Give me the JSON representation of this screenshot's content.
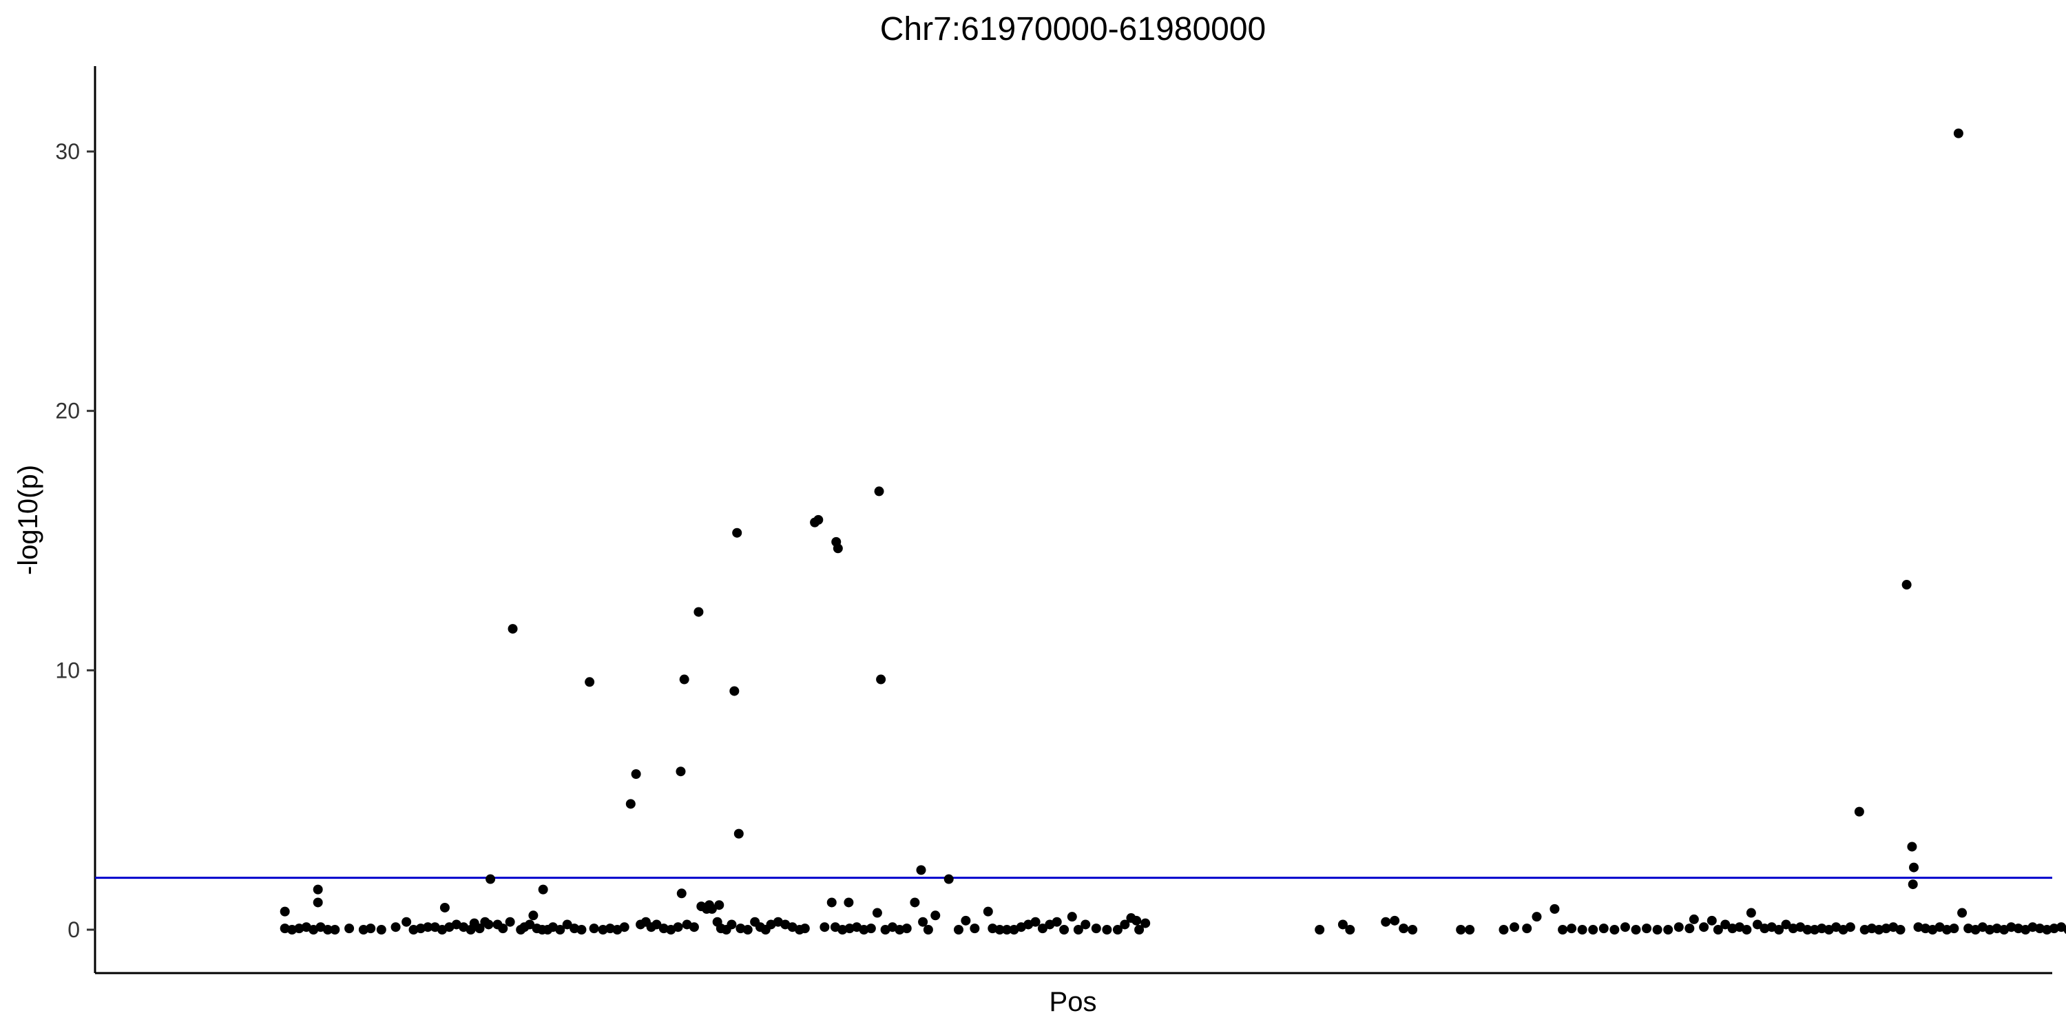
{
  "chart_data": {
    "type": "scatter",
    "title": "Chr7:61970000-61980000",
    "xlabel": "Pos",
    "ylabel": "-log10(p)",
    "ylim": [
      0,
      33.5
    ],
    "y_ticks": [
      0,
      10,
      20,
      30
    ],
    "y_tick_labels": [
      "0",
      "10",
      "20",
      "30"
    ],
    "x_ticks_shown": false,
    "grid": false,
    "threshold_line": {
      "y": 2,
      "color": "#0000CC"
    },
    "point_color": "#000000",
    "x_units": "chart fraction (no x tick labels printed)",
    "points": [
      [
        0.046,
        0.7
      ],
      [
        0.046,
        0.05
      ],
      [
        0.05,
        0.0
      ],
      [
        0.054,
        0.05
      ],
      [
        0.058,
        0.1
      ],
      [
        0.062,
        0.0
      ],
      [
        0.066,
        0.1
      ],
      [
        0.0645,
        1.05
      ],
      [
        0.0645,
        1.55
      ],
      [
        0.07,
        0.0
      ],
      [
        0.074,
        0.0
      ],
      [
        0.082,
        0.05
      ],
      [
        0.09,
        0.0
      ],
      [
        0.094,
        0.05
      ],
      [
        0.1,
        0.0
      ],
      [
        0.108,
        0.1
      ],
      [
        0.114,
        0.3
      ],
      [
        0.118,
        0.0
      ],
      [
        0.122,
        0.05
      ],
      [
        0.126,
        0.1
      ],
      [
        0.13,
        0.1
      ],
      [
        0.134,
        0.0
      ],
      [
        0.1355,
        0.85
      ],
      [
        0.138,
        0.1
      ],
      [
        0.142,
        0.2
      ],
      [
        0.146,
        0.1
      ],
      [
        0.15,
        0.0
      ],
      [
        0.152,
        0.25
      ],
      [
        0.155,
        0.05
      ],
      [
        0.158,
        0.3
      ],
      [
        0.16,
        0.2
      ],
      [
        0.161,
        1.95
      ],
      [
        0.165,
        0.2
      ],
      [
        0.168,
        0.05
      ],
      [
        0.172,
        0.3
      ],
      [
        0.1735,
        11.6
      ],
      [
        0.178,
        0.0
      ],
      [
        0.18,
        0.1
      ],
      [
        0.183,
        0.2
      ],
      [
        0.185,
        0.55
      ],
      [
        0.187,
        0.05
      ],
      [
        0.19,
        0.0
      ],
      [
        0.1905,
        1.55
      ],
      [
        0.193,
        0.0
      ],
      [
        0.196,
        0.1
      ],
      [
        0.2,
        0.0
      ],
      [
        0.204,
        0.2
      ],
      [
        0.208,
        0.05
      ],
      [
        0.212,
        0.0
      ],
      [
        0.2165,
        9.55
      ],
      [
        0.219,
        0.05
      ],
      [
        0.224,
        0.0
      ],
      [
        0.228,
        0.05
      ],
      [
        0.232,
        0.0
      ],
      [
        0.236,
        0.1
      ],
      [
        0.2395,
        4.85
      ],
      [
        0.2425,
        6.0
      ],
      [
        0.245,
        0.2
      ],
      [
        0.248,
        0.3
      ],
      [
        0.251,
        0.1
      ],
      [
        0.254,
        0.2
      ],
      [
        0.258,
        0.05
      ],
      [
        0.262,
        0.0
      ],
      [
        0.266,
        0.1
      ],
      [
        0.2675,
        6.1
      ],
      [
        0.268,
        1.4
      ],
      [
        0.2695,
        9.65
      ],
      [
        0.271,
        0.2
      ],
      [
        0.275,
        0.1
      ],
      [
        0.2775,
        12.25
      ],
      [
        0.279,
        0.9
      ],
      [
        0.282,
        0.8
      ],
      [
        0.2835,
        0.95
      ],
      [
        0.285,
        0.8
      ],
      [
        0.288,
        0.3
      ],
      [
        0.289,
        0.95
      ],
      [
        0.29,
        0.05
      ],
      [
        0.293,
        0.0
      ],
      [
        0.296,
        0.2
      ],
      [
        0.2975,
        9.2
      ],
      [
        0.299,
        15.3
      ],
      [
        0.3,
        3.7
      ],
      [
        0.301,
        0.05
      ],
      [
        0.305,
        0.0
      ],
      [
        0.309,
        0.3
      ],
      [
        0.312,
        0.1
      ],
      [
        0.315,
        0.0
      ],
      [
        0.318,
        0.2
      ],
      [
        0.322,
        0.3
      ],
      [
        0.326,
        0.2
      ],
      [
        0.33,
        0.1
      ],
      [
        0.334,
        0.0
      ],
      [
        0.337,
        0.05
      ],
      [
        0.3425,
        15.7
      ],
      [
        0.3445,
        15.8
      ],
      [
        0.348,
        0.1
      ],
      [
        0.352,
        1.05
      ],
      [
        0.354,
        0.1
      ],
      [
        0.3545,
        14.95
      ],
      [
        0.3555,
        14.7
      ],
      [
        0.358,
        0.0
      ],
      [
        0.3615,
        1.05
      ],
      [
        0.362,
        0.05
      ],
      [
        0.366,
        0.1
      ],
      [
        0.37,
        0.0
      ],
      [
        0.374,
        0.05
      ],
      [
        0.3775,
        0.65
      ],
      [
        0.3785,
        16.9
      ],
      [
        0.3795,
        9.65
      ],
      [
        0.382,
        0.0
      ],
      [
        0.386,
        0.1
      ],
      [
        0.39,
        0.0
      ],
      [
        0.394,
        0.05
      ],
      [
        0.3985,
        1.05
      ],
      [
        0.402,
        2.3
      ],
      [
        0.403,
        0.3
      ],
      [
        0.406,
        0.0
      ],
      [
        0.41,
        0.55
      ],
      [
        0.4175,
        1.95
      ],
      [
        0.423,
        0.0
      ],
      [
        0.427,
        0.35
      ],
      [
        0.432,
        0.05
      ],
      [
        0.4395,
        0.7
      ],
      [
        0.442,
        0.05
      ],
      [
        0.446,
        0.0
      ],
      [
        0.45,
        0.0
      ],
      [
        0.454,
        0.0
      ],
      [
        0.458,
        0.1
      ],
      [
        0.462,
        0.2
      ],
      [
        0.466,
        0.3
      ],
      [
        0.47,
        0.05
      ],
      [
        0.474,
        0.2
      ],
      [
        0.478,
        0.3
      ],
      [
        0.482,
        0.0
      ],
      [
        0.4865,
        0.5
      ],
      [
        0.49,
        0.0
      ],
      [
        0.494,
        0.2
      ],
      [
        0.5,
        0.05
      ],
      [
        0.506,
        0.0
      ],
      [
        0.512,
        0.0
      ],
      [
        0.516,
        0.2
      ],
      [
        0.5195,
        0.45
      ],
      [
        0.5225,
        0.35
      ],
      [
        0.524,
        0.0
      ],
      [
        0.5275,
        0.25
      ],
      [
        0.625,
        0.0
      ],
      [
        0.638,
        0.2
      ],
      [
        0.642,
        0.0
      ],
      [
        0.662,
        0.3
      ],
      [
        0.667,
        0.35
      ],
      [
        0.672,
        0.05
      ],
      [
        0.677,
        0.0
      ],
      [
        0.704,
        0.0
      ],
      [
        0.709,
        0.0
      ],
      [
        0.728,
        0.0
      ],
      [
        0.734,
        0.1
      ],
      [
        0.741,
        0.05
      ],
      [
        0.7465,
        0.5
      ],
      [
        0.7565,
        0.8
      ],
      [
        0.761,
        0.0
      ],
      [
        0.766,
        0.05
      ],
      [
        0.772,
        0.0
      ],
      [
        0.778,
        0.0
      ],
      [
        0.784,
        0.05
      ],
      [
        0.79,
        0.0
      ],
      [
        0.796,
        0.1
      ],
      [
        0.802,
        0.0
      ],
      [
        0.808,
        0.05
      ],
      [
        0.814,
        0.0
      ],
      [
        0.82,
        0.0
      ],
      [
        0.826,
        0.1
      ],
      [
        0.832,
        0.05
      ],
      [
        0.8345,
        0.4
      ],
      [
        0.84,
        0.1
      ],
      [
        0.8445,
        0.35
      ],
      [
        0.848,
        0.0
      ],
      [
        0.852,
        0.2
      ],
      [
        0.856,
        0.05
      ],
      [
        0.86,
        0.1
      ],
      [
        0.864,
        0.0
      ],
      [
        0.8665,
        0.65
      ],
      [
        0.87,
        0.2
      ],
      [
        0.874,
        0.05
      ],
      [
        0.878,
        0.1
      ],
      [
        0.882,
        0.0
      ],
      [
        0.886,
        0.2
      ],
      [
        0.89,
        0.05
      ],
      [
        0.894,
        0.1
      ],
      [
        0.898,
        0.0
      ],
      [
        0.902,
        0.0
      ],
      [
        0.906,
        0.05
      ],
      [
        0.91,
        0.0
      ],
      [
        0.914,
        0.1
      ],
      [
        0.918,
        0.0
      ],
      [
        0.922,
        0.1
      ],
      [
        0.927,
        4.55
      ],
      [
        0.93,
        0.0
      ],
      [
        0.934,
        0.05
      ],
      [
        0.938,
        0.0
      ],
      [
        0.942,
        0.05
      ],
      [
        0.946,
        0.1
      ],
      [
        0.95,
        0.0
      ],
      [
        0.9535,
        13.3
      ],
      [
        0.9565,
        3.2
      ],
      [
        0.9575,
        2.4
      ],
      [
        0.957,
        1.75
      ],
      [
        0.96,
        0.1
      ],
      [
        0.964,
        0.05
      ],
      [
        0.968,
        0.0
      ],
      [
        0.972,
        0.1
      ],
      [
        0.976,
        0.0
      ],
      [
        0.98,
        0.05
      ],
      [
        0.9825,
        30.7
      ],
      [
        0.9845,
        0.65
      ],
      [
        0.988,
        0.05
      ],
      [
        0.992,
        0.0
      ],
      [
        0.996,
        0.1
      ],
      [
        1.0,
        0.0
      ],
      [
        1.004,
        0.05
      ],
      [
        1.008,
        0.0
      ],
      [
        1.012,
        0.1
      ],
      [
        1.016,
        0.05
      ],
      [
        1.02,
        0.0
      ],
      [
        1.024,
        0.1
      ],
      [
        1.028,
        0.05
      ],
      [
        1.032,
        0.0
      ],
      [
        1.036,
        0.05
      ],
      [
        1.04,
        0.1
      ],
      [
        1.044,
        0.0
      ],
      [
        1.048,
        0.05
      ],
      [
        1.052,
        0.1
      ],
      [
        1.056,
        0.0
      ],
      [
        1.06,
        0.05
      ],
      [
        1.064,
        0.0
      ],
      [
        1.068,
        0.1
      ],
      [
        1.072,
        0.05
      ],
      [
        1.076,
        0.0
      ],
      [
        1.08,
        0.05
      ],
      [
        1.084,
        0.0
      ]
    ]
  }
}
